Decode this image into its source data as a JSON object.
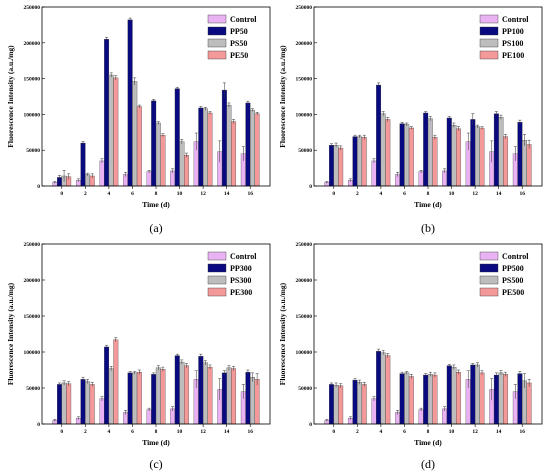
{
  "chart_data": [
    {
      "type": "bar",
      "panel_label": "(a)",
      "xlabel": "Time (d)",
      "ylabel": "Fluorescence Intensity (a.u./mg)",
      "ylim": [
        0,
        250000
      ],
      "yticks": [
        0,
        50000,
        100000,
        150000,
        200000,
        250000
      ],
      "categories": [
        "0",
        "2",
        "4",
        "6",
        "8",
        "10",
        "12",
        "14",
        "16"
      ],
      "legend_position": "top-right",
      "series": [
        {
          "name": "Control",
          "color": "#e9b3f3",
          "values": [
            5000,
            8000,
            35000,
            16000,
            20000,
            21000,
            62000,
            48000,
            45000
          ],
          "errors": [
            1500,
            2000,
            3000,
            3000,
            2000,
            3000,
            12000,
            15000,
            10000
          ]
        },
        {
          "name": "PP50",
          "color": "#0a0a80",
          "values": [
            12000,
            60000,
            205000,
            232000,
            119000,
            136000,
            109000,
            134000,
            116000
          ],
          "errors": [
            3000,
            2000,
            2500,
            2500,
            2000,
            2000,
            2000,
            10000,
            2500
          ]
        },
        {
          "name": "PS50",
          "color": "#bdbdbd",
          "values": [
            14000,
            16000,
            155000,
            146000,
            88000,
            62000,
            108000,
            113000,
            106000
          ],
          "errors": [
            8000,
            2000,
            3000,
            5000,
            2000,
            3000,
            2000,
            3000,
            2000
          ]
        },
        {
          "name": "PE50",
          "color": "#f49999",
          "values": [
            13000,
            14000,
            151000,
            111000,
            71000,
            43000,
            102000,
            90000,
            101000
          ],
          "errors": [
            4000,
            3000,
            3000,
            2000,
            2000,
            3000,
            2000,
            3000,
            2000
          ]
        }
      ]
    },
    {
      "type": "bar",
      "panel_label": "(b)",
      "xlabel": "Time (d)",
      "ylabel": "Fluorescence Intensity (a.u./mg)",
      "ylim": [
        0,
        250000
      ],
      "yticks": [
        0,
        50000,
        100000,
        150000,
        200000,
        250000
      ],
      "categories": [
        "0",
        "2",
        "4",
        "6",
        "8",
        "10",
        "12",
        "14",
        "16"
      ],
      "legend_position": "top-right",
      "series": [
        {
          "name": "Control",
          "color": "#e9b3f3",
          "values": [
            5000,
            8000,
            35000,
            16000,
            20000,
            21000,
            62000,
            48000,
            45000
          ],
          "errors": [
            1500,
            2000,
            3000,
            3000,
            2000,
            3000,
            12000,
            15000,
            10000
          ]
        },
        {
          "name": "PP100",
          "color": "#0a0a80",
          "values": [
            57000,
            69000,
            141000,
            87000,
            102000,
            95000,
            93000,
            101000,
            89000
          ],
          "errors": [
            2000,
            2000,
            3000,
            2000,
            2000,
            2000,
            8000,
            3000,
            3000
          ]
        },
        {
          "name": "PS100",
          "color": "#bdbdbd",
          "values": [
            57000,
            69000,
            101000,
            86000,
            94000,
            85000,
            83000,
            96000,
            64000
          ],
          "errors": [
            3000,
            2000,
            3000,
            2000,
            3000,
            3000,
            2000,
            3000,
            8000
          ]
        },
        {
          "name": "PE100",
          "color": "#f49999",
          "values": [
            53000,
            68000,
            93000,
            81000,
            68000,
            80000,
            81000,
            69000,
            58000
          ],
          "errors": [
            3000,
            3000,
            3000,
            2000,
            3000,
            3000,
            2000,
            3000,
            6000
          ]
        }
      ]
    },
    {
      "type": "bar",
      "panel_label": "(c)",
      "xlabel": "Time (d)",
      "ylabel": "Fluorescence Intensity (a.u./mg)",
      "ylim": [
        0,
        250000
      ],
      "yticks": [
        0,
        50000,
        100000,
        150000,
        200000,
        250000
      ],
      "categories": [
        "0",
        "2",
        "4",
        "6",
        "8",
        "10",
        "12",
        "14",
        "16"
      ],
      "legend_position": "top-right",
      "series": [
        {
          "name": "Control",
          "color": "#e9b3f3",
          "values": [
            5000,
            8000,
            35000,
            16000,
            20000,
            21000,
            62000,
            48000,
            45000
          ],
          "errors": [
            1500,
            2000,
            3000,
            3000,
            2000,
            3000,
            12000,
            15000,
            10000
          ]
        },
        {
          "name": "PP300",
          "color": "#0a0a80",
          "values": [
            55000,
            62000,
            107000,
            71000,
            69000,
            95000,
            94000,
            71000,
            72000
          ],
          "errors": [
            2000,
            3000,
            2000,
            2000,
            2000,
            2000,
            3000,
            3000,
            3000
          ]
        },
        {
          "name": "PS300",
          "color": "#bdbdbd",
          "values": [
            57000,
            59000,
            77000,
            71000,
            78000,
            86000,
            85000,
            78000,
            65000
          ],
          "errors": [
            3000,
            3000,
            3000,
            2000,
            3000,
            3000,
            3000,
            3000,
            6000
          ]
        },
        {
          "name": "PE300",
          "color": "#f49999",
          "values": [
            56000,
            55000,
            117000,
            72000,
            76000,
            81000,
            79000,
            77000,
            62000
          ],
          "errors": [
            3000,
            3000,
            3000,
            3000,
            3000,
            3000,
            3000,
            3000,
            8000
          ]
        }
      ]
    },
    {
      "type": "bar",
      "panel_label": "(d)",
      "xlabel": "Time (d)",
      "ylabel": "Fluorescence Intensity (a.u./mg)",
      "ylim": [
        0,
        250000
      ],
      "yticks": [
        0,
        50000,
        100000,
        150000,
        200000,
        250000
      ],
      "categories": [
        "0",
        "2",
        "4",
        "6",
        "8",
        "10",
        "12",
        "14",
        "16"
      ],
      "legend_position": "top-right",
      "series": [
        {
          "name": "Control",
          "color": "#e9b3f3",
          "values": [
            5000,
            8000,
            35000,
            16000,
            20000,
            21000,
            62000,
            48000,
            45000
          ],
          "errors": [
            1500,
            2000,
            3000,
            3000,
            2000,
            3000,
            12000,
            15000,
            10000
          ]
        },
        {
          "name": "PP500",
          "color": "#0a0a80",
          "values": [
            55000,
            61000,
            101000,
            70000,
            68000,
            81000,
            82000,
            68000,
            70000
          ],
          "errors": [
            2000,
            2000,
            3000,
            2000,
            2000,
            2000,
            2000,
            3000,
            3000
          ]
        },
        {
          "name": "PS500",
          "color": "#bdbdbd",
          "values": [
            54000,
            58000,
            99000,
            71000,
            69000,
            79000,
            82000,
            71000,
            60000
          ],
          "errors": [
            3000,
            3000,
            3000,
            2000,
            3000,
            3000,
            3000,
            3000,
            10000
          ]
        },
        {
          "name": "PE500",
          "color": "#f49999",
          "values": [
            53000,
            55000,
            95000,
            66000,
            68000,
            72000,
            71000,
            69000,
            57000
          ],
          "errors": [
            3000,
            3000,
            3000,
            3000,
            3000,
            3000,
            3000,
            3000,
            5000
          ]
        }
      ]
    }
  ]
}
